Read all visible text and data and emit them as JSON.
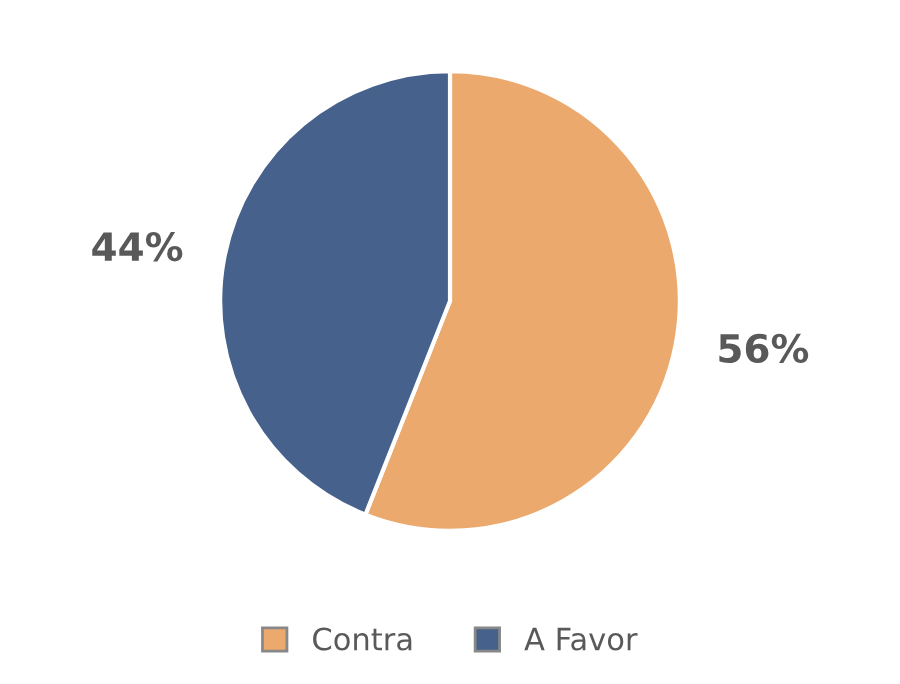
{
  "chart_data": {
    "type": "pie",
    "categories": [
      "Contra",
      "A Favor"
    ],
    "values": [
      56,
      44
    ],
    "colors": [
      "#eba96d",
      "#45618c"
    ],
    "value_labels": [
      "56%",
      "44%"
    ],
    "legend": "bottom"
  }
}
